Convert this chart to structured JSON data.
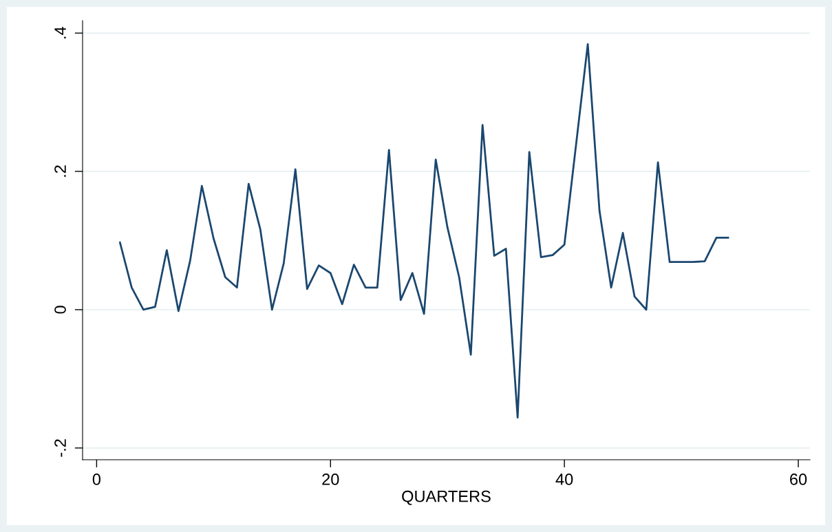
{
  "chart_data": {
    "type": "line",
    "xlabel": "QUARTERS",
    "x": [
      2,
      3,
      4,
      5,
      6,
      7,
      8,
      9,
      10,
      11,
      12,
      13,
      14,
      15,
      16,
      17,
      18,
      19,
      20,
      21,
      22,
      23,
      24,
      25,
      26,
      27,
      28,
      29,
      30,
      31,
      32,
      33,
      34,
      35,
      36,
      37,
      38,
      39,
      40,
      41,
      42,
      43,
      44,
      45,
      46,
      47,
      48,
      49,
      50,
      51,
      52,
      53,
      54
    ],
    "series": [
      {
        "color": "#1a476f",
        "values": [
          0.097,
          0.032,
          0.0,
          0.004,
          0.086,
          -0.002,
          0.071,
          0.179,
          0.103,
          0.047,
          0.032,
          0.182,
          0.116,
          0.0,
          0.067,
          0.203,
          0.03,
          0.064,
          0.053,
          0.008,
          0.065,
          0.032,
          0.032,
          0.231,
          0.014,
          0.053,
          -0.006,
          0.217,
          0.119,
          0.047,
          -0.065,
          0.267,
          0.078,
          0.088,
          -0.156,
          0.228,
          0.076,
          0.079,
          0.094,
          0.239,
          0.384,
          0.143,
          0.032,
          0.111,
          0.019,
          0.0,
          0.213,
          0.069,
          0.069,
          0.069,
          0.07,
          0.104,
          0.104
        ]
      }
    ],
    "xlim": [
      -1.2,
      61
    ],
    "ylim": [
      -0.217,
      0.418
    ],
    "xticks": [
      0,
      20,
      40,
      60
    ],
    "yticks": [
      {
        "value": -0.2,
        "label": "-.2"
      },
      0,
      {
        "value": 0.2,
        "label": ".2"
      },
      {
        "value": 0.4,
        "label": ".4"
      }
    ],
    "grid": "y",
    "marker": "none",
    "line_style": "solid"
  }
}
